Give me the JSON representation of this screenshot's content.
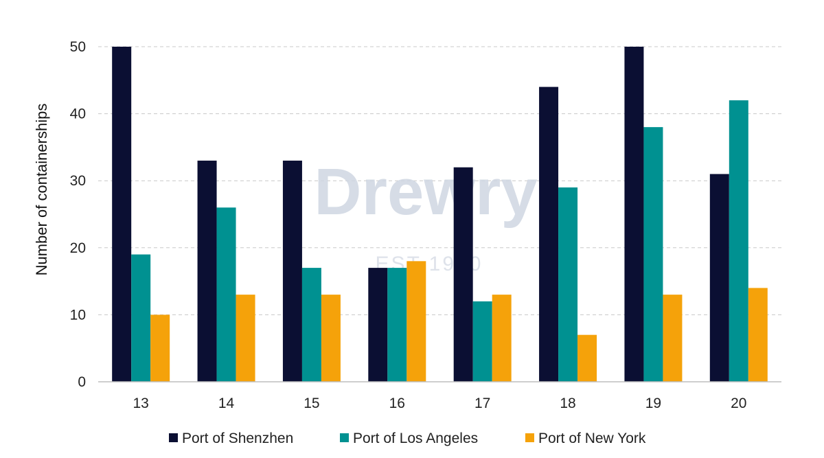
{
  "chart_data": {
    "type": "bar",
    "title": "",
    "xlabel": "",
    "ylabel": "Number of containerships",
    "categories": [
      "13",
      "14",
      "15",
      "16",
      "17",
      "18",
      "19",
      "20"
    ],
    "ylim": [
      0,
      50
    ],
    "yticks": [
      0,
      10,
      20,
      30,
      40,
      50
    ],
    "grid": true,
    "legend_position": "bottom",
    "series": [
      {
        "name": "Port of Shenzhen",
        "color": "#0b0f33",
        "values": [
          50,
          33,
          33,
          17,
          32,
          44,
          50,
          31
        ]
      },
      {
        "name": "Port of Los Angeles",
        "color": "#009191",
        "values": [
          19,
          26,
          17,
          17,
          12,
          29,
          38,
          42
        ]
      },
      {
        "name": "Port of New York",
        "color": "#f5a20a",
        "values": [
          10,
          13,
          13,
          18,
          13,
          7,
          13,
          14
        ]
      }
    ]
  },
  "watermark": {
    "brand": "Drewry",
    "tagline": "EST 1970"
  }
}
